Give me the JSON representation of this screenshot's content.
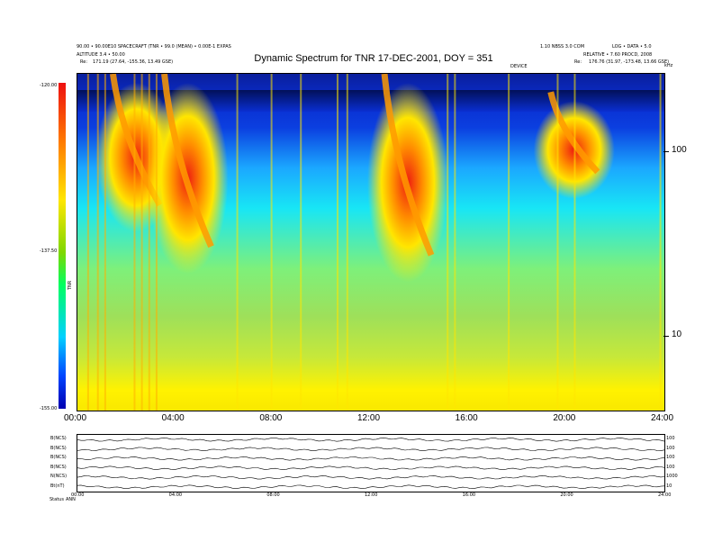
{
  "header": {
    "title": "Dynamic Spectrum for TNR 17-DEC-2001, DOY = 351",
    "left_line1": "90.00 • 90.00E10 SPACECRAFT (TNR • 99.0 (MEAN) • 0.00E-1 EXPAS",
    "left_line2": "ALTITUDE 3.4 • 50.00",
    "left_re": "Re:",
    "left_coords": "171.19 (27.64, -155.36, 13.49 GSE)",
    "right_line1": "1.10 NBSS 3.0 COM",
    "right_line1b": "LOG • DATA • 5.0",
    "right_line2": "RELATIVE • 7.60 PROCD, 2008",
    "right_re": "Re:",
    "right_coords": "176.76 (31.97, -173.48, 13.66 GSE)",
    "mid_label": "DEVICE",
    "corner_label": "kHz"
  },
  "chart_data": {
    "type": "heatmap",
    "title": "Dynamic Spectrum for TNR 17-DEC-2001, DOY = 351",
    "x_ticks": [
      "00:00",
      "04:00",
      "08:00",
      "12:00",
      "16:00",
      "20:00",
      "24:00"
    ],
    "xlim_hours": [
      0,
      24
    ],
    "y_ticks": [
      10,
      100
    ],
    "y_scale": "log",
    "ylim_khz": [
      4,
      250
    ],
    "colorbar": {
      "ticks": [
        "-120.00",
        "-137.50",
        "-155.00"
      ],
      "range_dbv": [
        -155.0,
        -120.0
      ],
      "label": "TNR",
      "colors": [
        "#0000b0",
        "#0044ff",
        "#00d0ff",
        "#00ff60",
        "#7fd700",
        "#ffe600",
        "#ff7a00",
        "#ee1010"
      ]
    },
    "bursts": [
      {
        "hour": 1.6,
        "top_khz": 250,
        "bottom_khz": 50
      },
      {
        "hour": 3.7,
        "top_khz": 250,
        "bottom_khz": 30
      },
      {
        "hour": 12.7,
        "top_khz": 250,
        "bottom_khz": 27
      },
      {
        "hour": 19.5,
        "top_khz": 200,
        "bottom_khz": 75
      }
    ]
  },
  "aux": {
    "rows": [
      {
        "label": "B(NCS)",
        "right": "100"
      },
      {
        "label": "B(NCS)",
        "right": "100"
      },
      {
        "label": "B(NCS)",
        "right": "100"
      },
      {
        "label": "B(NCS)",
        "right": "100"
      },
      {
        "label": "N(NCS)",
        "right": "1000"
      },
      {
        "label": "Bt(nT)",
        "right": "10"
      }
    ],
    "x_ticks": [
      "00:00",
      "04:00",
      "08:00",
      "12:00",
      "16:00",
      "20:00",
      "24:00"
    ],
    "footer_label": "Status",
    "footer_value": "ANN"
  }
}
